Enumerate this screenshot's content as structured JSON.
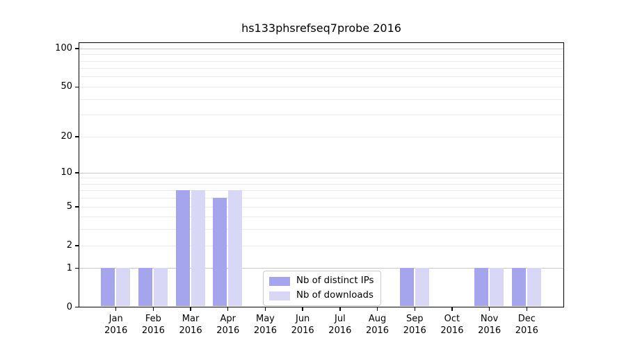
{
  "chart_data": {
    "type": "bar",
    "title": "hs133phsrefseq7probe 2016",
    "categories": [
      "Jan 2016",
      "Feb 2016",
      "Mar 2016",
      "Apr 2016",
      "May 2016",
      "Jun 2016",
      "Jul 2016",
      "Aug 2016",
      "Sep 2016",
      "Oct 2016",
      "Nov 2016",
      "Dec 2016"
    ],
    "series": [
      {
        "name": "Nb of distinct IPs",
        "color": "#a5a5ee",
        "values": [
          1,
          1,
          7,
          6,
          0,
          0,
          0,
          0,
          1,
          0,
          1,
          1
        ]
      },
      {
        "name": "Nb of downloads",
        "color": "#d8d8f6",
        "values": [
          1,
          1,
          7,
          7,
          0,
          0,
          0,
          0,
          1,
          0,
          1,
          1
        ]
      }
    ],
    "xlabel": "",
    "ylabel": "",
    "yscale": "log1p",
    "ylim": [
      0,
      113
    ],
    "y_ticks": [
      0,
      1,
      2,
      5,
      10,
      20,
      50,
      100
    ],
    "gridlines": {
      "major": [
        1,
        10,
        100
      ],
      "minor": [
        2,
        3,
        4,
        5,
        6,
        7,
        8,
        9,
        20,
        30,
        40,
        50,
        60,
        70,
        80,
        90
      ]
    },
    "legend": {
      "position": "lower center",
      "entries": [
        "Nb of distinct IPs",
        "Nb of downloads"
      ]
    }
  }
}
